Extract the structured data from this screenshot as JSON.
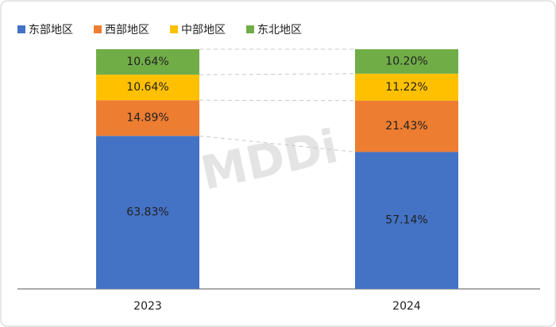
{
  "chart_data": {
    "type": "stacked_bar",
    "watermark": "MDDi",
    "categories": [
      "2023",
      "2024"
    ],
    "series": [
      {
        "name": "东部地区",
        "color": "#4472c4",
        "values": [
          63.83,
          57.14
        ],
        "value_labels": [
          "63.83%",
          "57.14%"
        ]
      },
      {
        "name": "西部地区",
        "color": "#ed7d31",
        "values": [
          14.89,
          21.43
        ],
        "value_labels": [
          "14.89%",
          "21.43%"
        ]
      },
      {
        "name": "中部地区",
        "color": "#ffc000",
        "values": [
          10.64,
          11.22
        ],
        "value_labels": [
          "10.64%",
          "11.22%"
        ]
      },
      {
        "name": "东北地区",
        "color": "#70ad47",
        "values": [
          10.64,
          10.2
        ],
        "value_labels": [
          "10.64%",
          "10.20%"
        ]
      }
    ],
    "ylim": [
      0,
      100
    ],
    "legend": "top-left"
  }
}
